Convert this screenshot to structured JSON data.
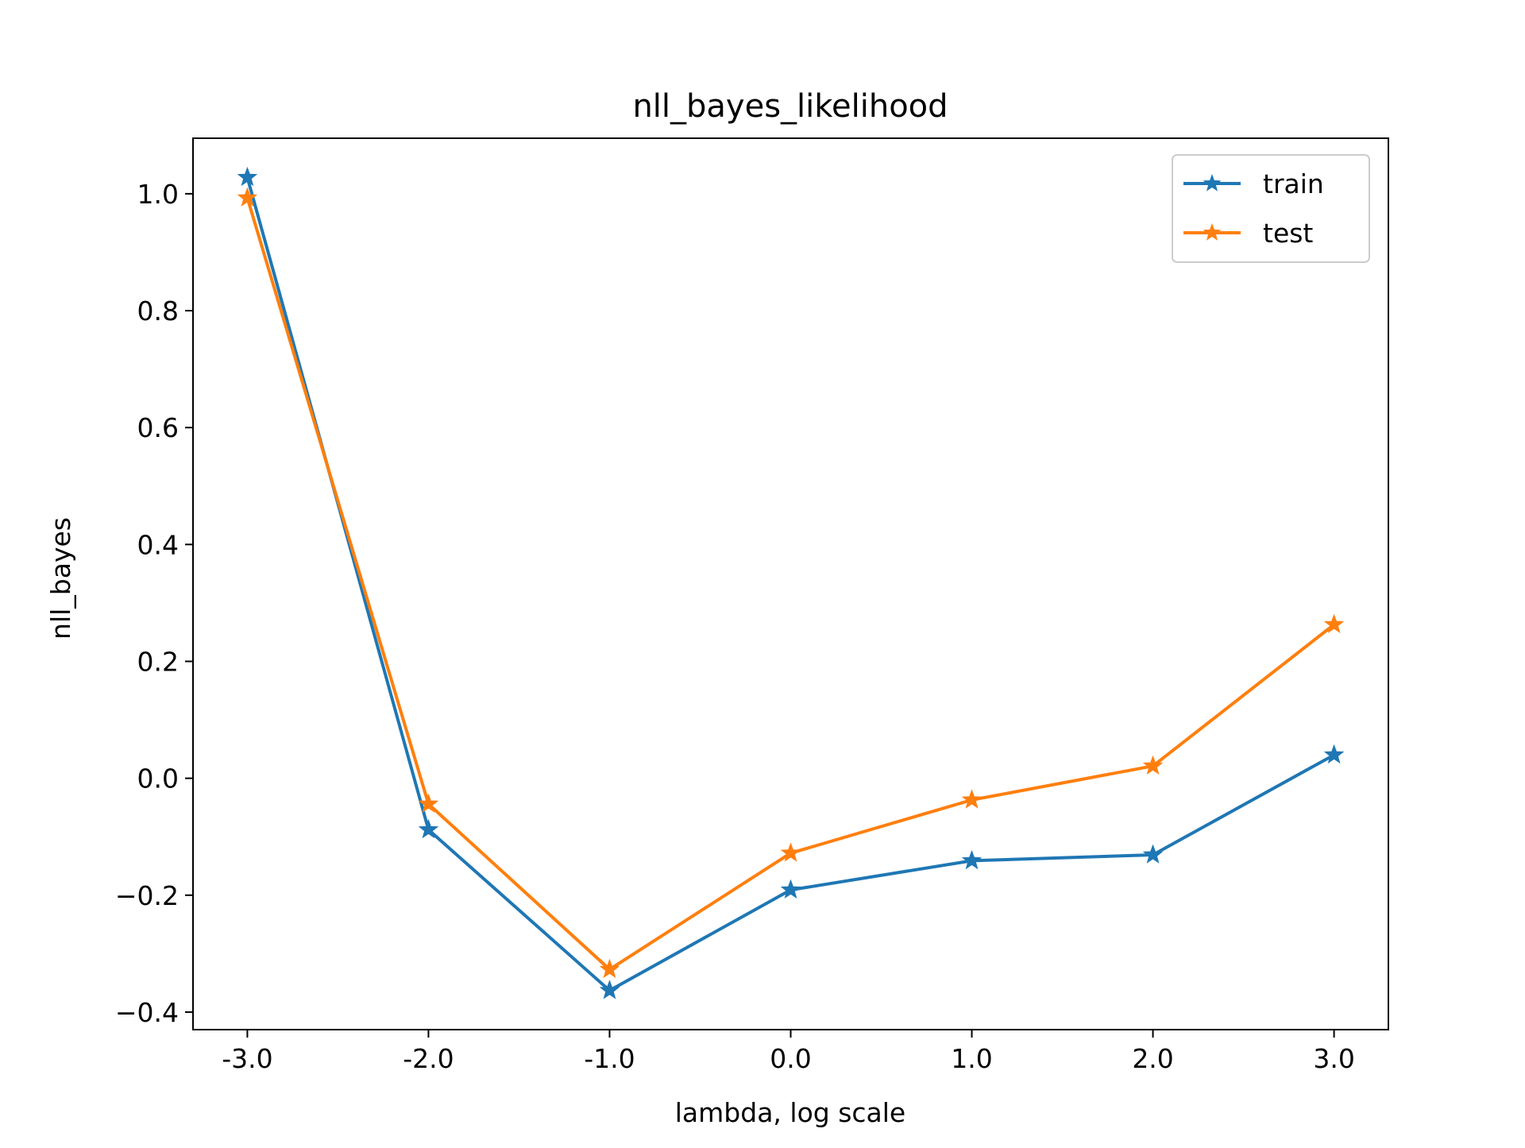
{
  "chart_data": {
    "type": "line",
    "title": "nll_bayes_likelihood",
    "xlabel": "lambda, log scale",
    "ylabel": "nll_bayes",
    "x": [
      -3.0,
      -2.0,
      -1.0,
      0.0,
      1.0,
      2.0,
      3.0
    ],
    "x_tick_labels": [
      "-3.0",
      "-2.0",
      "-1.0",
      "0.0",
      "1.0",
      "2.0",
      "3.0"
    ],
    "y_ticks": [
      -0.4,
      -0.2,
      0.0,
      0.2,
      0.4,
      0.6,
      0.8,
      1.0
    ],
    "y_tick_labels": [
      "−0.4",
      "−0.2",
      "0.0",
      "0.2",
      "0.4",
      "0.6",
      "0.8",
      "1.0"
    ],
    "xlim": [
      -3.3,
      3.3
    ],
    "ylim": [
      -0.43,
      1.095
    ],
    "grid": false,
    "legend_position": "top-right",
    "marker": "star",
    "series": [
      {
        "name": "train",
        "color": "#1f77b4",
        "values": [
          1.028,
          -0.088,
          -0.363,
          -0.191,
          -0.141,
          -0.131,
          0.04
        ]
      },
      {
        "name": "test",
        "color": "#ff7f0e",
        "values": [
          0.993,
          -0.044,
          -0.327,
          -0.128,
          -0.037,
          0.021,
          0.263
        ]
      }
    ]
  }
}
